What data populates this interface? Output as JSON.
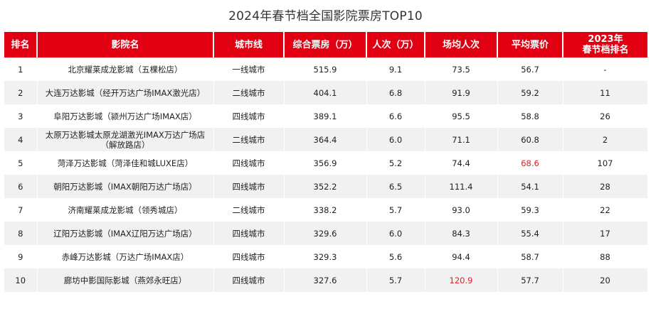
{
  "title": "2024年春节档全国影院票房TOP10",
  "colors": {
    "header_bg": "#e00012",
    "header_text": "#ffffff",
    "highlight_text": "#e0202a",
    "row_alt_bg": "#f1f1f1"
  },
  "chart_data": {
    "type": "table",
    "title": "2024年春节档全国影院票房TOP10",
    "columns": [
      "排名",
      "影院名",
      "城市线",
      "综合票房（万）",
      "人次（万）",
      "场均人次",
      "平均票价",
      "2023年\n春节档排名"
    ],
    "rows": [
      [
        "1",
        "北京耀莱成龙影城（五棵松店）",
        "一线城市",
        "515.9",
        "9.1",
        "73.5",
        "56.7",
        "-"
      ],
      [
        "2",
        "大连万达影城（经开万达广场IMAX激光店）",
        "二线城市",
        "404.1",
        "6.8",
        "91.9",
        "59.2",
        "11"
      ],
      [
        "3",
        "阜阳万达影城（颍州万达广场IMAX店）",
        "四线城市",
        "389.1",
        "6.6",
        "95.5",
        "58.8",
        "26"
      ],
      [
        "4",
        "太原万达影城太原龙湖激光IMAX万达广场店\n（解放路店）",
        "二线城市",
        "364.4",
        "6.0",
        "71.1",
        "60.8",
        "2"
      ],
      [
        "5",
        "菏泽万达影城（菏泽佳和城LUXE店）",
        "四线城市",
        "356.9",
        "5.2",
        "74.4",
        "68.6",
        "107"
      ],
      [
        "6",
        "朝阳万达影城（IMAX朝阳万达广场店）",
        "四线城市",
        "352.2",
        "6.5",
        "111.4",
        "54.1",
        "28"
      ],
      [
        "7",
        "济南耀莱成龙影城（领秀城店）",
        "二线城市",
        "338.2",
        "5.7",
        "93.0",
        "59.3",
        "22"
      ],
      [
        "8",
        "辽阳万达影城（IMAX辽阳万达广场店）",
        "四线城市",
        "329.6",
        "6.0",
        "84.3",
        "55.4",
        "17"
      ],
      [
        "9",
        "赤峰万达影城（万达广场IMAX店）",
        "四线城市",
        "329.3",
        "5.6",
        "94.4",
        "58.7",
        "88"
      ],
      [
        "10",
        "廊坊中影国际影城（燕郊永旺店）",
        "四线城市",
        "327.6",
        "5.7",
        "120.9",
        "57.7",
        "20"
      ]
    ],
    "highlights": [
      {
        "row": 4,
        "col": 6
      },
      {
        "row": 9,
        "col": 5
      }
    ]
  }
}
